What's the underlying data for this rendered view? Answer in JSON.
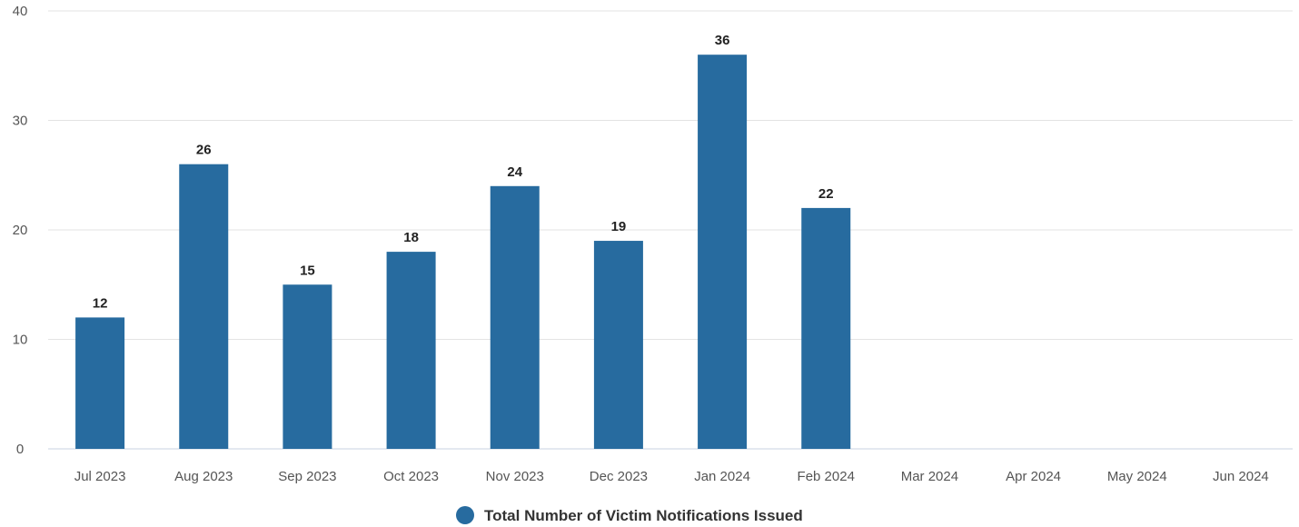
{
  "chart_data": {
    "type": "bar",
    "categories": [
      "Jul 2023",
      "Aug 2023",
      "Sep 2023",
      "Oct 2023",
      "Nov 2023",
      "Dec 2023",
      "Jan 2024",
      "Feb 2024",
      "Mar 2024",
      "Apr 2024",
      "May 2024",
      "Jun 2024"
    ],
    "series": [
      {
        "name": "Total Number of Victim Notifications Issued",
        "values": [
          12,
          26,
          15,
          18,
          24,
          19,
          36,
          22,
          null,
          null,
          null,
          null
        ],
        "color": "#276b9f"
      }
    ],
    "y_ticks": [
      "0",
      "10",
      "20",
      "30",
      "40"
    ],
    "ylim": [
      0,
      40
    ],
    "grid": true,
    "data_labels": true,
    "legend_position": "bottom-center"
  }
}
